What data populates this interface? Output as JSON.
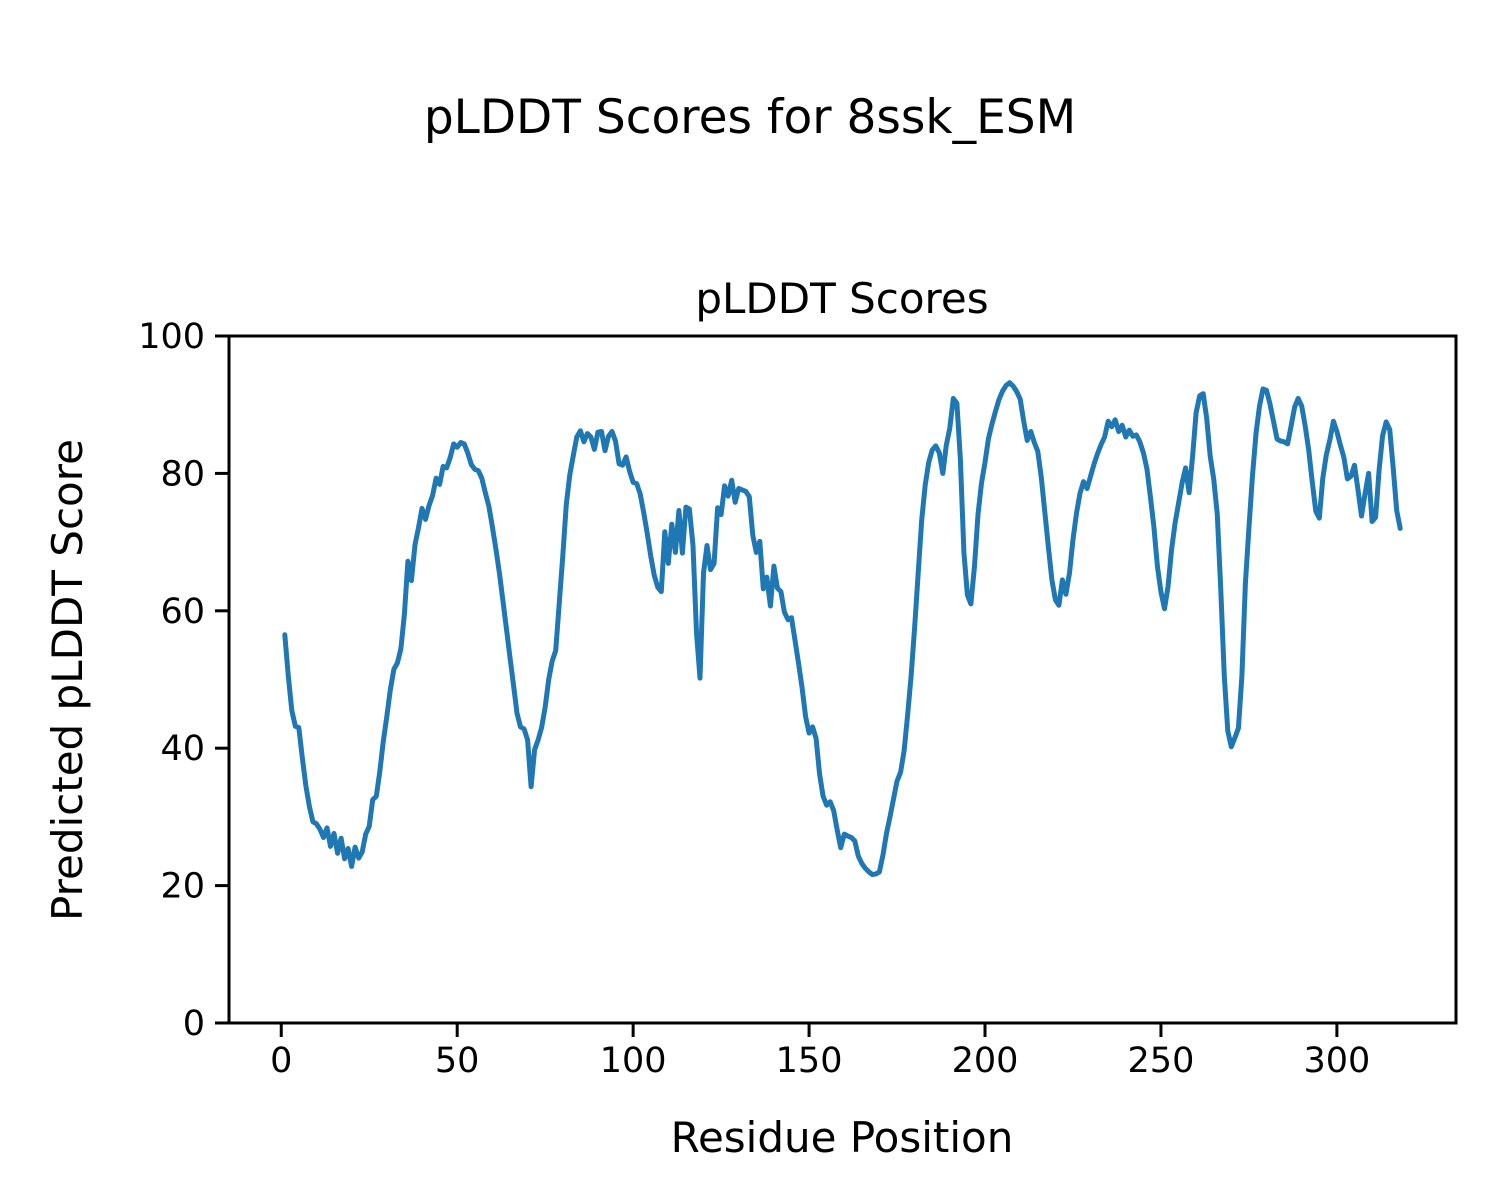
{
  "figure": {
    "suptitle": "pLDDT Scores for 8ssk_ESM"
  },
  "colors": {
    "background": "#ffffff",
    "text": "#000000",
    "line": "#1f77b4",
    "spine": "#000000"
  },
  "chart_data": {
    "type": "line",
    "title": "pLDDT Scores",
    "xlabel": "Residue Position",
    "ylabel": "Predicted pLDDT Score",
    "legend": null,
    "grid": false,
    "x_start": 1,
    "x_step": 1,
    "xlim": [
      -14.85,
      333.85
    ],
    "ylim": [
      0,
      100
    ],
    "xticks": [
      0,
      50,
      100,
      150,
      200,
      250,
      300
    ],
    "yticks": [
      0,
      20,
      40,
      60,
      80,
      100
    ],
    "series_name": "pLDDT",
    "values": [
      56.5,
      50.5,
      45.5,
      43.2,
      43.0,
      38.5,
      34.5,
      31.5,
      29.3,
      29.0,
      28.2,
      27.0,
      28.4,
      25.7,
      27.6,
      24.7,
      26.9,
      23.9,
      25.4,
      22.8,
      25.6,
      24.0,
      24.9,
      27.5,
      28.6,
      32.5,
      33.0,
      36.6,
      41.0,
      44.6,
      48.5,
      51.5,
      52.4,
      54.5,
      59.5,
      67.2,
      64.4,
      69.6,
      72.1,
      74.9,
      73.3,
      75.3,
      76.8,
      79.3,
      78.4,
      81.0,
      80.8,
      82.3,
      84.3,
      83.8,
      84.5,
      84.3,
      83.0,
      81.3,
      80.6,
      80.4,
      79.3,
      77.2,
      75.2,
      72.2,
      69.0,
      65.5,
      61.5,
      57.3,
      53.2,
      49.2,
      45.1,
      43.1,
      42.8,
      41.2,
      34.4,
      39.8,
      41.2,
      43.0,
      46.0,
      50.0,
      52.7,
      54.2,
      61.0,
      68.0,
      75.5,
      79.8,
      82.6,
      85.3,
      86.2,
      84.6,
      85.8,
      85.3,
      83.5,
      86.0,
      86.1,
      83.3,
      85.4,
      86.1,
      84.7,
      81.4,
      81.2,
      82.4,
      80.3,
      78.7,
      78.5,
      77.0,
      74.3,
      71.3,
      68.0,
      65.2,
      63.4,
      62.8,
      71.5,
      66.9,
      72.6,
      68.5,
      74.6,
      68.4,
      75.1,
      74.8,
      69.5,
      56.8,
      50.2,
      65.5,
      69.5,
      66.0,
      66.9,
      75.0,
      74.0,
      78.2,
      76.7,
      79.0,
      75.8,
      77.8,
      77.6,
      77.4,
      76.6,
      71.0,
      68.5,
      70.1,
      63.2,
      64.9,
      60.7,
      66.5,
      63.3,
      62.8,
      59.8,
      58.7,
      59.0,
      55.7,
      52.4,
      48.9,
      44.6,
      42.2,
      43.1,
      41.4,
      36.2,
      33.0,
      31.7,
      32.2,
      30.9,
      28.1,
      25.5,
      27.5,
      27.2,
      27.0,
      26.5,
      24.3,
      23.2,
      22.5,
      22.0,
      21.6,
      21.7,
      22.0,
      24.5,
      27.6,
      30.0,
      32.6,
      35.2,
      36.5,
      39.6,
      44.8,
      50.5,
      57.5,
      65.5,
      73.2,
      78.3,
      81.6,
      83.4,
      84.0,
      83.0,
      80.0,
      84.1,
      86.6,
      90.9,
      90.2,
      82.0,
      68.5,
      62.3,
      61.0,
      66.5,
      74.0,
      78.6,
      81.6,
      85.1,
      87.2,
      89.1,
      90.8,
      92.0,
      92.8,
      93.2,
      92.7,
      91.9,
      90.8,
      87.6,
      84.8,
      86.1,
      84.5,
      83.2,
      79.4,
      74.4,
      69.4,
      64.5,
      61.6,
      60.8,
      64.5,
      62.4,
      65.5,
      70.4,
      74.2,
      77.1,
      78.8,
      77.8,
      79.6,
      81.4,
      82.9,
      84.2,
      85.3,
      87.6,
      86.8,
      87.8,
      86.1,
      87.0,
      85.3,
      86.3,
      85.4,
      85.6,
      84.6,
      83.0,
      80.7,
      76.6,
      72.2,
      66.5,
      62.8,
      60.3,
      63.5,
      68.8,
      72.7,
      75.6,
      78.6,
      80.8,
      77.2,
      82.5,
      88.8,
      91.3,
      91.6,
      88.0,
      82.5,
      79.2,
      74.0,
      63.0,
      50.5,
      42.5,
      40.2,
      41.5,
      42.9,
      50.5,
      64.0,
      72.0,
      79.5,
      85.8,
      89.8,
      92.3,
      92.1,
      90.1,
      87.5,
      85.0,
      84.7,
      84.6,
      84.3,
      86.9,
      89.7,
      90.9,
      89.8,
      86.9,
      83.4,
      78.7,
      74.5,
      73.5,
      79.3,
      82.7,
      84.9,
      87.6,
      86.1,
      84.1,
      82.3,
      79.2,
      79.6,
      81.2,
      77.6,
      73.8,
      77.0,
      80.0,
      73.0,
      73.6,
      80.5,
      85.5,
      87.5,
      86.4,
      80.8,
      74.6,
      72.0
    ]
  }
}
